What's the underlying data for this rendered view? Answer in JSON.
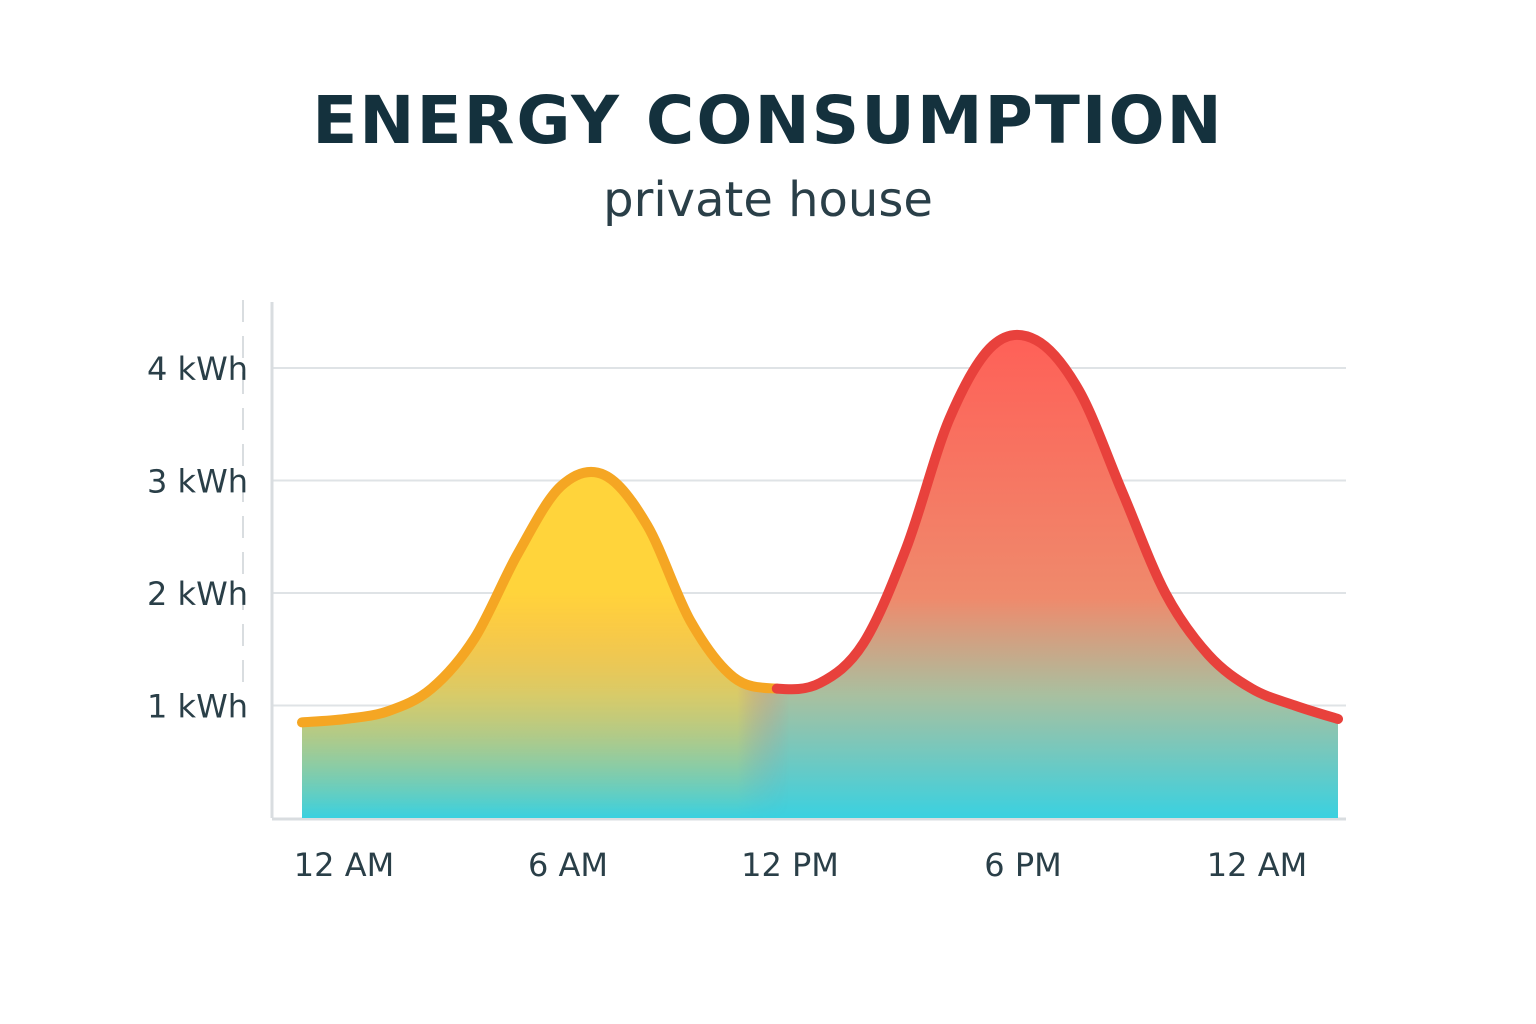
{
  "chart_data": {
    "type": "area",
    "title": "ENERGY CONSUMPTION",
    "subtitle": "private house",
    "ylabel": "",
    "xlabel": "",
    "x_tick_labels": [
      "12 AM",
      "6 AM",
      "12 PM",
      "6 PM",
      "12 AM"
    ],
    "y_tick_labels": [
      "1 kWh",
      "2 kWh",
      "3 kWh",
      "4 kWh"
    ],
    "y_ticks": [
      1,
      2,
      3,
      4
    ],
    "xlim": [
      0,
      24
    ],
    "ylim": [
      0,
      4.5
    ],
    "grid": true,
    "x_hours": [
      0,
      1,
      2,
      3,
      4,
      5,
      6,
      7,
      8,
      9,
      10,
      11,
      12,
      13,
      14,
      15,
      16,
      17,
      18,
      19,
      20,
      21,
      22,
      23,
      24
    ],
    "values": [
      0.85,
      0.88,
      0.95,
      1.15,
      1.6,
      2.35,
      2.95,
      3.05,
      2.6,
      1.75,
      1.25,
      1.15,
      1.2,
      1.55,
      2.4,
      3.55,
      4.2,
      4.25,
      3.8,
      2.9,
      2.0,
      1.45,
      1.15,
      1.0,
      0.88
    ],
    "segments": [
      {
        "from_hour": 0,
        "to_hour": 11,
        "line_color": "#f5a623"
      },
      {
        "from_hour": 11,
        "to_hour": 24,
        "line_color": "#e8413c"
      }
    ],
    "fill_colors": {
      "low": "#3ad1e0",
      "morning_peak": "#ffd43b",
      "evening_peak": "#ff5f57"
    }
  }
}
